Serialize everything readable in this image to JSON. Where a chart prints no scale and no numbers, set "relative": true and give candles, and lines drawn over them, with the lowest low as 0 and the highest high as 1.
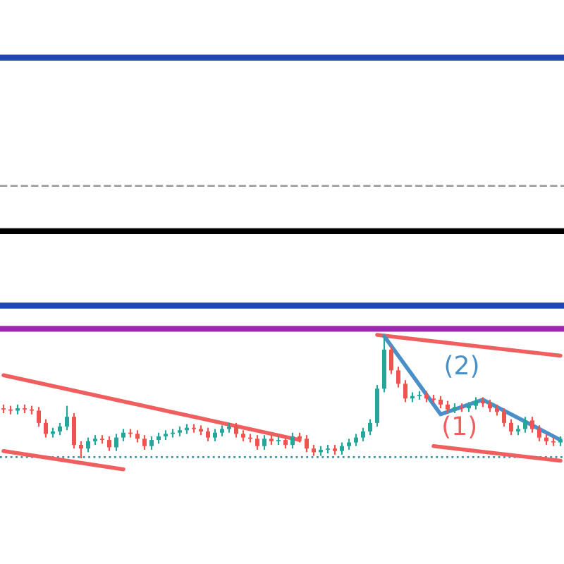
{
  "chart_data": {
    "type": "candlestick",
    "relative": true,
    "categories": [
      null,
      null,
      null,
      null,
      null,
      null,
      null,
      null,
      null,
      null,
      null,
      null,
      null,
      null,
      null,
      null,
      null,
      null,
      null,
      null,
      null,
      null,
      null,
      null,
      null,
      null,
      null,
      null,
      null,
      null,
      null,
      null,
      null,
      null,
      null,
      null,
      null,
      null,
      null,
      null,
      null,
      null,
      null,
      null,
      null,
      null,
      null,
      null,
      null,
      null,
      null,
      null,
      null,
      null,
      null,
      null,
      null,
      null,
      null,
      null,
      null,
      null,
      null,
      null,
      null,
      null,
      null,
      null,
      null,
      null,
      null,
      null,
      null,
      null,
      null,
      null,
      null,
      null,
      null,
      null
    ],
    "ohlc": [
      [
        0.41,
        0.44,
        0.37,
        0.4
      ],
      [
        0.4,
        0.43,
        0.36,
        0.39
      ],
      [
        0.39,
        0.44,
        0.36,
        0.41
      ],
      [
        0.41,
        0.44,
        0.37,
        0.4
      ],
      [
        0.4,
        0.43,
        0.36,
        0.39
      ],
      [
        0.39,
        0.42,
        0.26,
        0.29
      ],
      [
        0.29,
        0.32,
        0.17,
        0.2
      ],
      [
        0.2,
        0.25,
        0.17,
        0.22
      ],
      [
        0.22,
        0.29,
        0.19,
        0.26
      ],
      [
        0.26,
        0.43,
        0.23,
        0.34
      ],
      [
        0.34,
        0.37,
        0.08,
        0.11
      ],
      [
        0.11,
        0.14,
        0,
        0.08
      ],
      [
        0.08,
        0.17,
        0.05,
        0.14
      ],
      [
        0.14,
        0.19,
        0.11,
        0.16
      ],
      [
        0.16,
        0.19,
        0.12,
        0.15
      ],
      [
        0.15,
        0.18,
        0.06,
        0.09
      ],
      [
        0.09,
        0.2,
        0.06,
        0.17
      ],
      [
        0.17,
        0.24,
        0.14,
        0.21
      ],
      [
        0.21,
        0.24,
        0.17,
        0.2
      ],
      [
        0.2,
        0.23,
        0.13,
        0.16
      ],
      [
        0.16,
        0.19,
        0.07,
        0.1
      ],
      [
        0.1,
        0.18,
        0.07,
        0.15
      ],
      [
        0.15,
        0.21,
        0.12,
        0.18
      ],
      [
        0.18,
        0.23,
        0.15,
        0.2
      ],
      [
        0.2,
        0.24,
        0.17,
        0.21
      ],
      [
        0.21,
        0.26,
        0.18,
        0.23
      ],
      [
        0.23,
        0.28,
        0.2,
        0.25
      ],
      [
        0.25,
        0.28,
        0.21,
        0.24
      ],
      [
        0.24,
        0.27,
        0.19,
        0.22
      ],
      [
        0.22,
        0.25,
        0.14,
        0.17
      ],
      [
        0.17,
        0.24,
        0.14,
        0.21
      ],
      [
        0.21,
        0.27,
        0.18,
        0.24
      ],
      [
        0.24,
        0.29,
        0.21,
        0.26
      ],
      [
        0.26,
        0.29,
        0.17,
        0.2
      ],
      [
        0.2,
        0.23,
        0.14,
        0.17
      ],
      [
        0.17,
        0.2,
        0.13,
        0.16
      ],
      [
        0.16,
        0.19,
        0.07,
        0.1
      ],
      [
        0.1,
        0.19,
        0.07,
        0.16
      ],
      [
        0.16,
        0.19,
        0.11,
        0.14
      ],
      [
        0.14,
        0.18,
        0.11,
        0.15
      ],
      [
        0.15,
        0.18,
        0.08,
        0.11
      ],
      [
        0.11,
        0.21,
        0.08,
        0.18
      ],
      [
        0.18,
        0.21,
        0.13,
        0.16
      ],
      [
        0.16,
        0.19,
        0.05,
        0.08
      ],
      [
        0.08,
        0.11,
        0.02,
        0.05
      ],
      [
        0.05,
        0.1,
        0.02,
        0.07
      ],
      [
        0.07,
        0.11,
        0.04,
        0.08
      ],
      [
        0.08,
        0.11,
        0.03,
        0.06
      ],
      [
        0.06,
        0.13,
        0.03,
        0.1
      ],
      [
        0.1,
        0.16,
        0.07,
        0.13
      ],
      [
        0.13,
        0.2,
        0.1,
        0.17
      ],
      [
        0.17,
        0.25,
        0.14,
        0.22
      ],
      [
        0.22,
        0.32,
        0.19,
        0.29
      ],
      [
        0.29,
        0.6,
        0.26,
        0.57
      ],
      [
        0.57,
        1,
        0.54,
        0.89
      ],
      [
        0.89,
        0.92,
        0.69,
        0.72
      ],
      [
        0.72,
        0.75,
        0.58,
        0.61
      ],
      [
        0.61,
        0.64,
        0.46,
        0.49
      ],
      [
        0.49,
        0.54,
        0.46,
        0.51
      ],
      [
        0.51,
        0.55,
        0.48,
        0.52
      ],
      [
        0.52,
        0.55,
        0.46,
        0.49
      ],
      [
        0.49,
        0.52,
        0.45,
        0.48
      ],
      [
        0.48,
        0.51,
        0.41,
        0.44
      ],
      [
        0.44,
        0.47,
        0.37,
        0.4
      ],
      [
        0.4,
        0.45,
        0.37,
        0.42
      ],
      [
        0.42,
        0.45,
        0.38,
        0.41
      ],
      [
        0.41,
        0.46,
        0.38,
        0.43
      ],
      [
        0.43,
        0.5,
        0.4,
        0.47
      ],
      [
        0.47,
        0.5,
        0.42,
        0.45
      ],
      [
        0.45,
        0.48,
        0.38,
        0.41
      ],
      [
        0.41,
        0.44,
        0.35,
        0.38
      ],
      [
        0.38,
        0.41,
        0.26,
        0.29
      ],
      [
        0.29,
        0.32,
        0.19,
        0.22
      ],
      [
        0.22,
        0.27,
        0.19,
        0.24
      ],
      [
        0.24,
        0.34,
        0.21,
        0.31
      ],
      [
        0.31,
        0.34,
        0.21,
        0.24
      ],
      [
        0.24,
        0.27,
        0.14,
        0.17
      ],
      [
        0.17,
        0.2,
        0.11,
        0.14
      ],
      [
        0.14,
        0.17,
        0.1,
        0.13
      ],
      [
        0.13,
        0.18,
        0.1,
        0.15
      ]
    ],
    "series": [
      {
        "type": "line",
        "color": "#ef5f5f",
        "values": [
          0.68,
          null,
          null,
          null,
          null,
          null,
          null,
          null,
          null,
          null,
          null,
          null,
          null,
          null,
          null,
          null,
          null,
          null,
          null,
          null,
          null,
          null,
          null,
          null,
          null,
          null,
          null,
          null,
          null,
          null,
          null,
          null,
          null,
          null,
          null,
          null,
          null,
          null,
          null,
          null,
          null,
          null,
          0.15,
          null,
          null,
          null,
          null,
          null,
          null,
          null,
          null,
          null,
          null,
          null,
          null,
          null,
          null,
          null,
          null,
          null,
          null,
          null,
          null,
          null,
          null,
          null,
          null,
          null,
          null,
          null,
          null,
          null,
          null,
          null,
          null,
          null,
          null,
          null,
          null,
          null
        ]
      },
      {
        "type": "line",
        "color": "#ef5f5f",
        "values": [
          0.06,
          null,
          null,
          null,
          null,
          null,
          null,
          null,
          null,
          null,
          null,
          null,
          null,
          null,
          null,
          null,
          null,
          -0.09,
          null,
          null,
          null,
          null,
          null,
          null,
          null,
          null,
          null,
          null,
          null,
          null,
          null,
          null,
          null,
          null,
          null,
          null,
          null,
          null,
          null,
          null,
          null,
          null,
          null,
          null,
          null,
          null,
          null,
          null,
          null,
          null,
          null,
          null,
          null,
          null,
          null,
          null,
          null,
          null,
          null,
          null,
          null,
          null,
          null,
          null,
          null,
          null,
          null,
          null,
          null,
          null,
          null,
          null,
          null,
          null,
          null,
          null,
          null,
          null,
          null,
          null
        ]
      },
      {
        "type": "line",
        "color": "#ef5f5f",
        "values": [
          null,
          null,
          null,
          null,
          null,
          null,
          null,
          null,
          null,
          null,
          null,
          null,
          null,
          null,
          null,
          null,
          null,
          null,
          null,
          null,
          null,
          null,
          null,
          null,
          null,
          null,
          null,
          null,
          null,
          null,
          null,
          null,
          null,
          null,
          null,
          null,
          null,
          null,
          null,
          null,
          null,
          null,
          null,
          null,
          null,
          null,
          null,
          null,
          null,
          null,
          null,
          null,
          null,
          1.01,
          null,
          null,
          null,
          null,
          null,
          null,
          null,
          null,
          null,
          null,
          null,
          null,
          null,
          null,
          null,
          null,
          null,
          null,
          null,
          null,
          null,
          null,
          null,
          null,
          null,
          0.84
        ]
      },
      {
        "type": "line",
        "name": "(1)",
        "color": "#ef5f5f",
        "values": [
          null,
          null,
          null,
          null,
          null,
          null,
          null,
          null,
          null,
          null,
          null,
          null,
          null,
          null,
          null,
          null,
          null,
          null,
          null,
          null,
          null,
          null,
          null,
          null,
          null,
          null,
          null,
          null,
          null,
          null,
          null,
          null,
          null,
          null,
          null,
          null,
          null,
          null,
          null,
          null,
          null,
          null,
          null,
          null,
          null,
          null,
          null,
          null,
          null,
          null,
          null,
          null,
          null,
          null,
          null,
          null,
          null,
          null,
          null,
          null,
          null,
          0.1,
          null,
          null,
          null,
          null,
          null,
          null,
          null,
          null,
          null,
          null,
          null,
          null,
          null,
          null,
          null,
          null,
          null,
          -0.02
        ]
      },
      {
        "type": "line",
        "name": "(2)",
        "color": "#4a90c8",
        "values": [
          null,
          null,
          null,
          null,
          null,
          null,
          null,
          null,
          null,
          null,
          null,
          null,
          null,
          null,
          null,
          null,
          null,
          null,
          null,
          null,
          null,
          null,
          null,
          null,
          null,
          null,
          null,
          null,
          null,
          null,
          null,
          null,
          null,
          null,
          null,
          null,
          null,
          null,
          null,
          null,
          null,
          null,
          null,
          null,
          null,
          null,
          null,
          null,
          null,
          null,
          null,
          null,
          null,
          null,
          1.0,
          null,
          null,
          null,
          null,
          null,
          null,
          null,
          0.36,
          null,
          null,
          null,
          null,
          null,
          0.48,
          null,
          null,
          null,
          null,
          null,
          null,
          null,
          null,
          null,
          null,
          0.15
        ]
      }
    ],
    "ref_lines": [
      {
        "axis": "y",
        "value": 3.28,
        "color": "#1e47b4",
        "line_style": "solid"
      },
      {
        "axis": "y",
        "value": 2.23,
        "color": "#9e9e9e",
        "line_style": "dashed"
      },
      {
        "axis": "y",
        "value": 1.86,
        "color": "#000000",
        "line_style": "solid"
      },
      {
        "axis": "y",
        "value": 1.25,
        "color": "#1e47b4",
        "line_style": "solid"
      },
      {
        "axis": "y",
        "value": 1.06,
        "color": "#9c27b0",
        "line_style": "solid"
      },
      {
        "axis": "y",
        "value": 0.01,
        "color": "#3f8fa8",
        "line_style": "dotted"
      }
    ]
  }
}
